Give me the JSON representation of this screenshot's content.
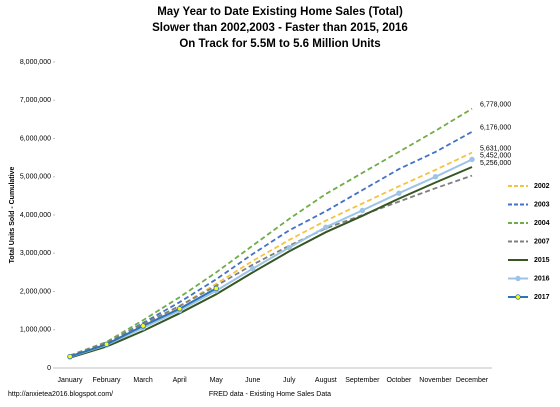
{
  "chart_data": {
    "type": "line",
    "title": [
      "May Year to Date Existing Home Sales (Total)",
      "Slower than 2002,2003 - Faster than 2015, 2016",
      "On Track for 5.5M to 5.6 Million Units"
    ],
    "y_label": "Total Units Sold - Cumulative",
    "x_label": "FRED data - Existing Home Sales Data",
    "source": "http://anxietea2016.blogspot.com/",
    "categories": [
      "January",
      "February",
      "March",
      "April",
      "May",
      "June",
      "July",
      "August",
      "September",
      "October",
      "November",
      "December"
    ],
    "ylim": [
      0,
      8000000
    ],
    "yticks": [
      0,
      {
        "value": 1000000,
        "label": "1,000,000"
      },
      {
        "value": 2000000,
        "label": "2,000,000"
      },
      {
        "value": 3000000,
        "label": "3,000,000"
      },
      {
        "value": 4000000,
        "label": "4,000,000"
      },
      {
        "value": 5000000,
        "label": "5,000,000"
      },
      {
        "value": 6000000,
        "label": "6,000,000"
      },
      {
        "value": 7000000,
        "label": "7,000,000"
      },
      {
        "value": 8000000,
        "label": "8,000,000"
      }
    ],
    "grid": false,
    "legend": "right",
    "series": [
      {
        "name": "2002",
        "color": "#f5c342",
        "dashed": true,
        "values": [
          300000,
          620000,
          1120000,
          1620000,
          2200000,
          2800000,
          3350000,
          3850000,
          4300000,
          4750000,
          5180000,
          5631000
        ],
        "end_label": "5,631,000",
        "end_label_color": "#000000"
      },
      {
        "name": "2003",
        "color": "#4472c4",
        "dashed": true,
        "values": [
          310000,
          640000,
          1180000,
          1720000,
          2320000,
          2980000,
          3600000,
          4100000,
          4650000,
          5200000,
          5650000,
          6176000
        ],
        "end_label": "6,176,000",
        "end_label_color": "#000000"
      },
      {
        "name": "2004",
        "color": "#70ad47",
        "dashed": true,
        "values": [
          330000,
          680000,
          1250000,
          1850000,
          2500000,
          3200000,
          3900000,
          4550000,
          5100000,
          5650000,
          6200000,
          6778000
        ],
        "end_label": "6,778,000",
        "end_label_color": "#595959"
      },
      {
        "name": "2007",
        "color": "#7f7f7f",
        "dashed": true,
        "values": [
          320000,
          660000,
          1150000,
          1620000,
          2150000,
          2700000,
          3200000,
          3650000,
          4000000,
          4350000,
          4700000,
          5030000
        ]
      },
      {
        "name": "2015",
        "color": "#375623",
        "dashed": false,
        "values": [
          270000,
          560000,
          970000,
          1430000,
          1930000,
          2500000,
          3050000,
          3550000,
          3980000,
          4430000,
          4850000,
          5256000
        ],
        "end_label": "5,256,000",
        "end_label_color": "#2e75b6"
      },
      {
        "name": "2016",
        "color": "#9dc3e6",
        "dashed": false,
        "marker": "#9dc3e6",
        "values": [
          290000,
          600000,
          1050000,
          1500000,
          2020000,
          2600000,
          3150000,
          3680000,
          4120000,
          4570000,
          5000000,
          5452000
        ],
        "end_label": "5,452,000",
        "end_label_color": "#7f7f7f"
      },
      {
        "name": "2017",
        "color": "#2e75b6",
        "dashed": false,
        "marker": "#ffff00",
        "values": [
          300000,
          620000,
          1100000,
          1550000,
          2080000,
          null,
          null,
          null,
          null,
          null,
          null,
          null
        ]
      }
    ]
  }
}
